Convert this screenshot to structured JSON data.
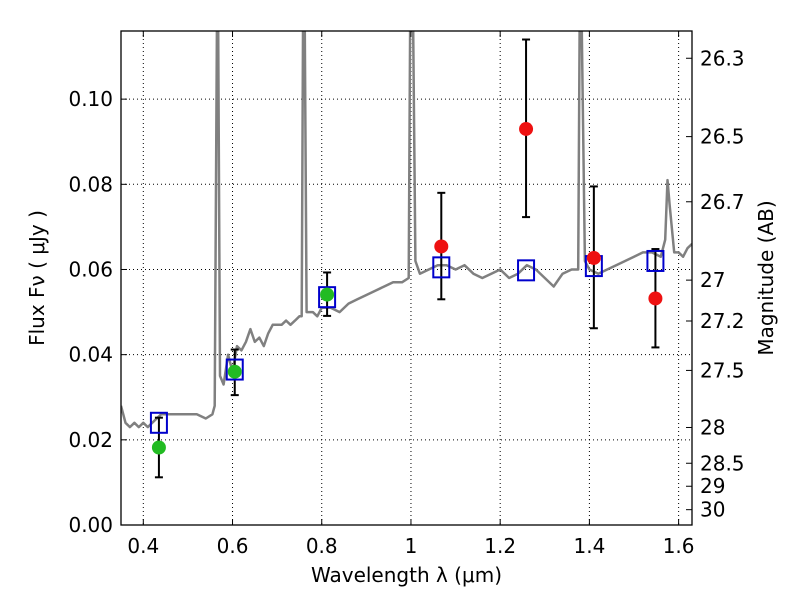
{
  "chart_data": {
    "type": "scatter",
    "title": "",
    "xlabel": "Wavelength  λ (μm)",
    "ylabel": "Flux  Fν  ( μJy )",
    "y2label": "Magnitude (AB)",
    "xlim": [
      0.35,
      1.63
    ],
    "ylim": [
      0.0,
      0.116
    ],
    "grid": true,
    "x_ticks": [
      0.4,
      0.6,
      0.8,
      1.0,
      1.2,
      1.4,
      1.6
    ],
    "x_tick_labels": [
      "0.4",
      "0.6",
      "0.8",
      "1",
      "1.2",
      "1.4",
      "1.6"
    ],
    "y_ticks": [
      0.0,
      0.02,
      0.04,
      0.06,
      0.08,
      0.1
    ],
    "y_tick_labels": [
      "0.00",
      "0.02",
      "0.04",
      "0.06",
      "0.08",
      "0.10"
    ],
    "y2_ticks": [
      {
        "label": "26.3",
        "flux": 0.1096
      },
      {
        "label": "26.5",
        "flux": 0.0912
      },
      {
        "label": "26.7",
        "flux": 0.0759
      },
      {
        "label": "27",
        "flux": 0.0575
      },
      {
        "label": "27.2",
        "flux": 0.0479
      },
      {
        "label": "27.5",
        "flux": 0.0363
      },
      {
        "label": "28",
        "flux": 0.0229
      },
      {
        "label": "28.5",
        "flux": 0.0145
      },
      {
        "label": "29",
        "flux": 0.0091
      },
      {
        "label": "30",
        "flux": 0.0036
      }
    ],
    "colors": {
      "spectrum": "#808080",
      "green_points": "#22bb22",
      "red_points": "#ee1111",
      "model_boxes": "#0000cc",
      "errorbars": "#000000"
    },
    "series": [
      {
        "type": "line",
        "values": [
          [
            0.35,
            0.028
          ],
          [
            0.36,
            0.024
          ],
          [
            0.37,
            0.023
          ],
          [
            0.38,
            0.024
          ],
          [
            0.39,
            0.023
          ],
          [
            0.4,
            0.024
          ],
          [
            0.41,
            0.023
          ],
          [
            0.42,
            0.024
          ],
          [
            0.43,
            0.025
          ],
          [
            0.44,
            0.026
          ],
          [
            0.46,
            0.026
          ],
          [
            0.48,
            0.026
          ],
          [
            0.5,
            0.026
          ],
          [
            0.52,
            0.026
          ],
          [
            0.54,
            0.025
          ],
          [
            0.555,
            0.026
          ],
          [
            0.56,
            0.028
          ],
          [
            0.565,
            0.116
          ],
          [
            0.568,
            0.116
          ],
          [
            0.572,
            0.035
          ],
          [
            0.58,
            0.033
          ],
          [
            0.59,
            0.04
          ],
          [
            0.6,
            0.036
          ],
          [
            0.61,
            0.042
          ],
          [
            0.62,
            0.041
          ],
          [
            0.63,
            0.043
          ],
          [
            0.64,
            0.046
          ],
          [
            0.65,
            0.043
          ],
          [
            0.66,
            0.044
          ],
          [
            0.67,
            0.042
          ],
          [
            0.68,
            0.045
          ],
          [
            0.69,
            0.047
          ],
          [
            0.7,
            0.047
          ],
          [
            0.71,
            0.047
          ],
          [
            0.72,
            0.048
          ],
          [
            0.73,
            0.047
          ],
          [
            0.74,
            0.048
          ],
          [
            0.75,
            0.049
          ],
          [
            0.755,
            0.049
          ],
          [
            0.758,
            0.116
          ],
          [
            0.762,
            0.116
          ],
          [
            0.766,
            0.05
          ],
          [
            0.78,
            0.05
          ],
          [
            0.79,
            0.049
          ],
          [
            0.8,
            0.051
          ],
          [
            0.82,
            0.051
          ],
          [
            0.84,
            0.05
          ],
          [
            0.86,
            0.052
          ],
          [
            0.88,
            0.053
          ],
          [
            0.9,
            0.054
          ],
          [
            0.92,
            0.055
          ],
          [
            0.94,
            0.056
          ],
          [
            0.96,
            0.057
          ],
          [
            0.98,
            0.057
          ],
          [
            0.995,
            0.058
          ],
          [
            0.998,
            0.116
          ],
          [
            1.005,
            0.116
          ],
          [
            1.01,
            0.062
          ],
          [
            1.02,
            0.059
          ],
          [
            1.04,
            0.06
          ],
          [
            1.06,
            0.061
          ],
          [
            1.08,
            0.061
          ],
          [
            1.1,
            0.06
          ],
          [
            1.12,
            0.061
          ],
          [
            1.14,
            0.059
          ],
          [
            1.16,
            0.058
          ],
          [
            1.18,
            0.059
          ],
          [
            1.2,
            0.06
          ],
          [
            1.22,
            0.058
          ],
          [
            1.24,
            0.059
          ],
          [
            1.26,
            0.061
          ],
          [
            1.28,
            0.06
          ],
          [
            1.3,
            0.058
          ],
          [
            1.32,
            0.056
          ],
          [
            1.34,
            0.059
          ],
          [
            1.36,
            0.06
          ],
          [
            1.375,
            0.06
          ],
          [
            1.378,
            0.116
          ],
          [
            1.383,
            0.116
          ],
          [
            1.39,
            0.062
          ],
          [
            1.4,
            0.06
          ],
          [
            1.42,
            0.059
          ],
          [
            1.44,
            0.06
          ],
          [
            1.46,
            0.061
          ],
          [
            1.48,
            0.062
          ],
          [
            1.5,
            0.063
          ],
          [
            1.52,
            0.064
          ],
          [
            1.54,
            0.064
          ],
          [
            1.56,
            0.063
          ],
          [
            1.57,
            0.067
          ],
          [
            1.575,
            0.081
          ],
          [
            1.58,
            0.075
          ],
          [
            1.59,
            0.064
          ],
          [
            1.6,
            0.064
          ],
          [
            1.61,
            0.063
          ],
          [
            1.62,
            0.065
          ],
          [
            1.63,
            0.066
          ]
        ]
      },
      {
        "type": "scatter",
        "points": [
          {
            "x": 0.435,
            "y": 0.0182,
            "err_lo": 0.007,
            "err_hi": 0.007
          },
          {
            "x": 0.605,
            "y": 0.036,
            "err_lo": 0.0055,
            "err_hi": 0.0052
          },
          {
            "x": 0.812,
            "y": 0.0541,
            "err_lo": 0.005,
            "err_hi": 0.0052
          }
        ]
      },
      {
        "type": "scatter",
        "points": [
          {
            "x": 1.068,
            "y": 0.0654,
            "err_lo": 0.0124,
            "err_hi": 0.0126
          },
          {
            "x": 1.258,
            "y": 0.093,
            "err_lo": 0.0207,
            "err_hi": 0.021
          },
          {
            "x": 1.41,
            "y": 0.0627,
            "err_lo": 0.0165,
            "err_hi": 0.0168
          },
          {
            "x": 1.548,
            "y": 0.0532,
            "err_lo": 0.0115,
            "err_hi": 0.0116
          }
        ]
      },
      {
        "type": "scatter",
        "points": [
          {
            "x": 0.435,
            "y": 0.024
          },
          {
            "x": 0.605,
            "y": 0.0365
          },
          {
            "x": 0.812,
            "y": 0.0535
          },
          {
            "x": 1.068,
            "y": 0.0605
          },
          {
            "x": 1.258,
            "y": 0.0598
          },
          {
            "x": 1.41,
            "y": 0.0608
          },
          {
            "x": 1.548,
            "y": 0.062
          }
        ]
      }
    ]
  }
}
